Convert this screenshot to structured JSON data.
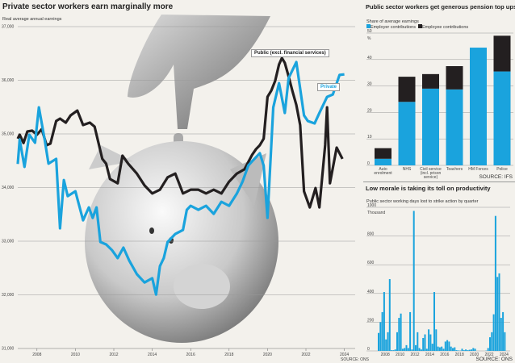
{
  "main": {
    "title": "Private sector workers earn marginally more",
    "subtitle": "Real average annual earnings",
    "source": "SOURCE: ONS",
    "public_label": "Public (excl. financial services)",
    "private_label": "Private"
  },
  "pension": {
    "title": "Public sector workers get generous pension top ups",
    "source": "SOURCE: IFS"
  },
  "strike": {
    "title": "Low morale is taking its toll on productivity",
    "source": "SOURCE: ONS"
  },
  "colors": {
    "public": "#231f20",
    "private": "#1aa3dd",
    "employee": "#231f20",
    "employer": "#1aa3dd",
    "background": "#f3f1ec"
  },
  "chart_data": [
    {
      "type": "line",
      "title": "Private sector workers earn marginally more",
      "ylabel": "Real average annual earnings",
      "ylim": [
        31000,
        37000
      ],
      "yticks": [
        "37,000",
        "36,000",
        "35,000",
        "34,000",
        "33,000",
        "32,000",
        "31,000"
      ],
      "xticks": [
        "2008",
        "2010",
        "2012",
        "2014",
        "2016",
        "2018",
        "2020",
        "2022",
        "2024"
      ],
      "grid": true,
      "background_image": "hand dropping coin into piggy bank",
      "series": [
        {
          "name": "Public (excl. financial services)",
          "color": "#231f20",
          "points": [
            [
              2007.0,
              34910
            ],
            [
              2007.1,
              34985
            ],
            [
              2007.3,
              34830
            ],
            [
              2007.5,
              35045
            ],
            [
              2007.75,
              35060
            ],
            [
              2008.0,
              34985
            ],
            [
              2008.25,
              35090
            ],
            [
              2008.5,
              34790
            ],
            [
              2008.7,
              34820
            ],
            [
              2009.0,
              35240
            ],
            [
              2009.2,
              35285
            ],
            [
              2009.5,
              35210
            ],
            [
              2009.75,
              35345
            ],
            [
              2010.1,
              35435
            ],
            [
              2010.4,
              35165
            ],
            [
              2010.75,
              35210
            ],
            [
              2011.0,
              35135
            ],
            [
              2011.4,
              34535
            ],
            [
              2011.6,
              34445
            ],
            [
              2011.8,
              34160
            ],
            [
              2012.2,
              34080
            ],
            [
              2012.45,
              34595
            ],
            [
              2012.75,
              34445
            ],
            [
              2013.2,
              34260
            ],
            [
              2013.6,
              34040
            ],
            [
              2014.0,
              33890
            ],
            [
              2014.4,
              33960
            ],
            [
              2014.8,
              34190
            ],
            [
              2015.2,
              34260
            ],
            [
              2015.6,
              33890
            ],
            [
              2016.0,
              33960
            ],
            [
              2016.4,
              33960
            ],
            [
              2016.8,
              33890
            ],
            [
              2017.2,
              33960
            ],
            [
              2017.6,
              33890
            ],
            [
              2018.0,
              34110
            ],
            [
              2018.4,
              34260
            ],
            [
              2018.8,
              34340
            ],
            [
              2019.2,
              34610
            ],
            [
              2019.4,
              34715
            ],
            [
              2019.6,
              34790
            ],
            [
              2019.8,
              34910
            ],
            [
              2020.0,
              35690
            ],
            [
              2020.2,
              35810
            ],
            [
              2020.4,
              35990
            ],
            [
              2020.6,
              36295
            ],
            [
              2020.75,
              36415
            ],
            [
              2020.9,
              36325
            ],
            [
              2021.1,
              36070
            ],
            [
              2021.3,
              35795
            ],
            [
              2021.5,
              35540
            ],
            [
              2021.7,
              35165
            ],
            [
              2021.9,
              33930
            ],
            [
              2022.2,
              33630
            ],
            [
              2022.5,
              33990
            ],
            [
              2022.7,
              33630
            ],
            [
              2023.0,
              34790
            ],
            [
              2023.1,
              35495
            ],
            [
              2023.25,
              34080
            ],
            [
              2023.6,
              34745
            ],
            [
              2023.9,
              34535
            ]
          ]
        },
        {
          "name": "Private",
          "color": "#1aa3dd",
          "points": [
            [
              2007.0,
              34440
            ],
            [
              2007.1,
              34895
            ],
            [
              2007.35,
              34385
            ],
            [
              2007.6,
              34985
            ],
            [
              2007.9,
              34835
            ],
            [
              2008.1,
              35495
            ],
            [
              2008.4,
              34895
            ],
            [
              2008.6,
              34445
            ],
            [
              2009.0,
              34535
            ],
            [
              2009.2,
              33240
            ],
            [
              2009.4,
              34140
            ],
            [
              2009.6,
              33840
            ],
            [
              2010.0,
              33930
            ],
            [
              2010.4,
              33390
            ],
            [
              2010.7,
              33630
            ],
            [
              2010.9,
              33435
            ],
            [
              2011.1,
              33630
            ],
            [
              2011.3,
              32985
            ],
            [
              2011.6,
              32940
            ],
            [
              2011.9,
              32835
            ],
            [
              2012.2,
              32685
            ],
            [
              2012.5,
              32880
            ],
            [
              2012.8,
              32640
            ],
            [
              2013.2,
              32385
            ],
            [
              2013.6,
              32230
            ],
            [
              2014.0,
              32310
            ],
            [
              2014.2,
              32005
            ],
            [
              2014.4,
              32535
            ],
            [
              2014.6,
              32685
            ],
            [
              2014.8,
              32985
            ],
            [
              2015.0,
              33060
            ],
            [
              2015.2,
              33135
            ],
            [
              2015.6,
              33210
            ],
            [
              2015.8,
              33585
            ],
            [
              2016.0,
              33660
            ],
            [
              2016.4,
              33585
            ],
            [
              2016.8,
              33660
            ],
            [
              2017.2,
              33510
            ],
            [
              2017.6,
              33735
            ],
            [
              2018.0,
              33660
            ],
            [
              2018.4,
              33885
            ],
            [
              2018.7,
              34110
            ],
            [
              2019.0,
              34410
            ],
            [
              2019.2,
              34490
            ],
            [
              2019.6,
              34640
            ],
            [
              2019.8,
              34410
            ],
            [
              2020.0,
              33435
            ],
            [
              2020.3,
              35495
            ],
            [
              2020.6,
              35945
            ],
            [
              2020.9,
              35390
            ],
            [
              2021.1,
              36040
            ],
            [
              2021.5,
              36340
            ],
            [
              2021.9,
              35345
            ],
            [
              2022.1,
              35240
            ],
            [
              2022.45,
              35195
            ],
            [
              2022.7,
              35390
            ],
            [
              2023.1,
              35690
            ],
            [
              2023.4,
              35735
            ],
            [
              2023.75,
              36100
            ],
            [
              2024.0,
              36110
            ]
          ]
        }
      ]
    },
    {
      "type": "bar",
      "stacked": true,
      "title": "Public sector workers get generous pension top ups",
      "ylabel": "Share of average earnings",
      "unit": "%",
      "ylim": [
        0,
        50
      ],
      "yticks": [
        "0",
        "10",
        "20",
        "30",
        "40",
        "50"
      ],
      "grid": true,
      "legend": "top-left",
      "categories": [
        "Auto enrolment",
        "NHS",
        "Civil service (incl. prison service)",
        "Teachers",
        "HM Forces",
        "Police"
      ],
      "series": [
        {
          "name": "Employer contributions",
          "color": "#1aa3dd",
          "values": [
            2.5,
            24,
            29,
            28.7,
            44.5,
            35.5
          ]
        },
        {
          "name": "Employee contributions",
          "color": "#231f20",
          "values": [
            4,
            9.5,
            5.5,
            8.8,
            0,
            13.5
          ]
        }
      ]
    },
    {
      "type": "bar",
      "title": "Low morale is taking its toll on productivity",
      "ylabel": "Public sector working days lost to strike action by quarter",
      "unit": "Thousand",
      "ylim": [
        0,
        1000
      ],
      "yticks": [
        "0",
        "200",
        "400",
        "600",
        "800",
        "1000"
      ],
      "xticks": [
        "2008",
        "2010",
        "2012",
        "2014",
        "2016",
        "2018",
        "2020",
        "2022",
        "2024"
      ],
      "grid": true,
      "color": "#1aa3dd",
      "start_quarter": "2007 Q1",
      "values": [
        125,
        200,
        270,
        410,
        80,
        130,
        500,
        5,
        5,
        10,
        130,
        230,
        260,
        15,
        20,
        40,
        20,
        270,
        10,
        975,
        40,
        130,
        20,
        10,
        90,
        115,
        15,
        150,
        115,
        50,
        410,
        150,
        30,
        25,
        30,
        15,
        65,
        75,
        65,
        30,
        20,
        25,
        5,
        3,
        2,
        15,
        5,
        10,
        5,
        8,
        10,
        20,
        15,
        0,
        0,
        0,
        0,
        0,
        2,
        20,
        95,
        130,
        255,
        940,
        515,
        540,
        230,
        270,
        130
      ]
    }
  ]
}
